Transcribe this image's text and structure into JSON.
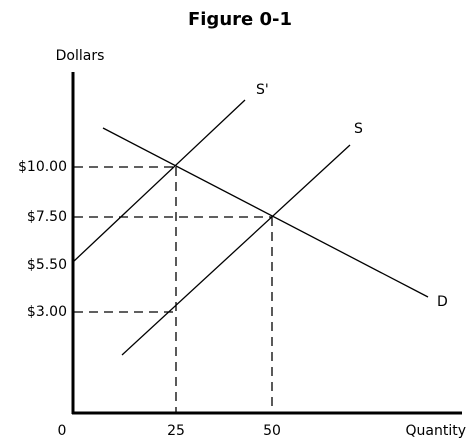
{
  "title": "Figure 0-1",
  "y_axis_label": "Dollars",
  "x_axis_label": "Quantity",
  "origin_label": "0",
  "y_labels": [
    "$10.00",
    "$7.50",
    "$5.50",
    "$3.00"
  ],
  "x_labels": [
    "25",
    "50"
  ],
  "curves": [
    {
      "label": "S'"
    },
    {
      "label": "S"
    },
    {
      "label": "D"
    }
  ]
}
